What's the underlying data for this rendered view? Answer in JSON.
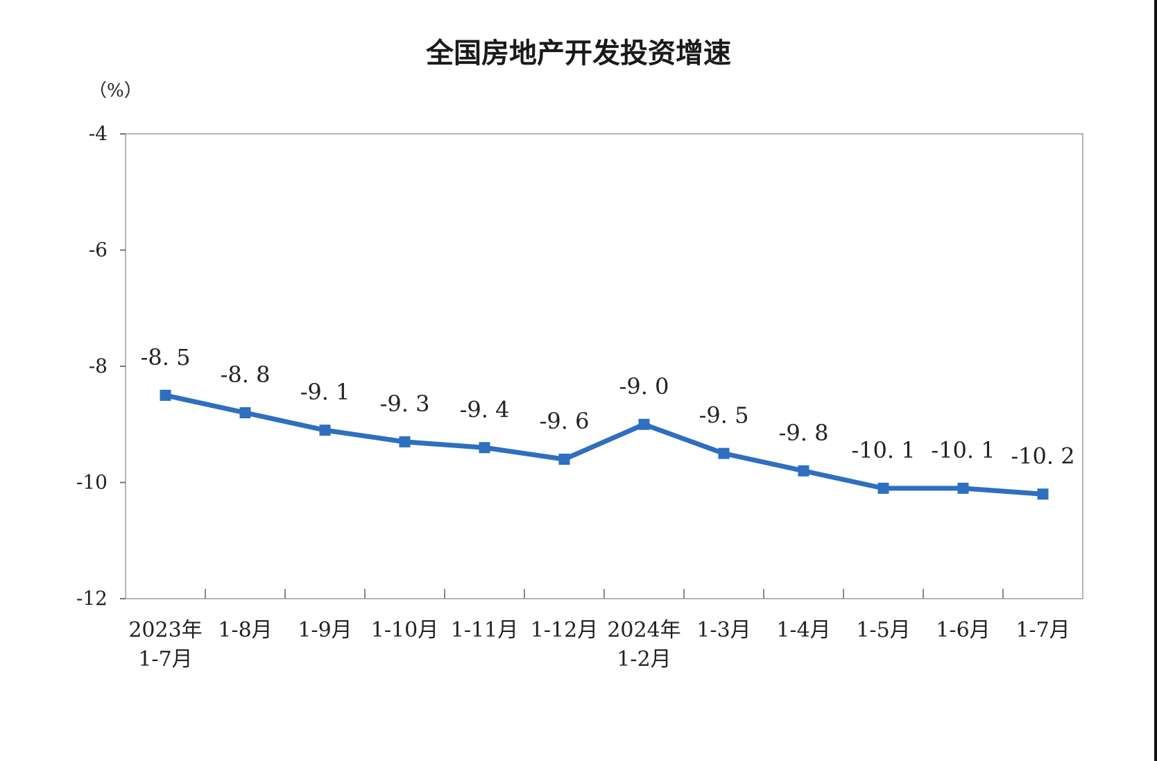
{
  "chart_data": {
    "type": "line",
    "title": "全国房地产开发投资增速",
    "ylabel": "（%）",
    "xlabel": "",
    "ylim": [
      -12,
      -4
    ],
    "yticks": [
      -4,
      -6,
      -8,
      -10,
      -12
    ],
    "grid": false,
    "categories": [
      [
        "2023年",
        "1-7月"
      ],
      [
        "1-8月"
      ],
      [
        "1-9月"
      ],
      [
        "1-10月"
      ],
      [
        "1-11月"
      ],
      [
        "1-12月"
      ],
      [
        "2024年",
        "1-2月"
      ],
      [
        "1-3月"
      ],
      [
        "1-4月"
      ],
      [
        "1-5月"
      ],
      [
        "1-6月"
      ],
      [
        "1-7月"
      ]
    ],
    "series": [
      {
        "values": [
          -8.5,
          -8.8,
          -9.1,
          -9.3,
          -9.4,
          -9.6,
          -9.0,
          -9.5,
          -9.8,
          -10.1,
          -10.1,
          -10.2
        ],
        "data_labels": [
          "-8. 5",
          "-8. 8",
          "-9. 1",
          "-9. 3",
          "-9. 4",
          "-9. 6",
          "-9. 0",
          "-9. 5",
          "-9. 8",
          "-10. 1",
          "-10. 1",
          "-10. 2"
        ],
        "color": "#2e6fc0"
      }
    ]
  }
}
